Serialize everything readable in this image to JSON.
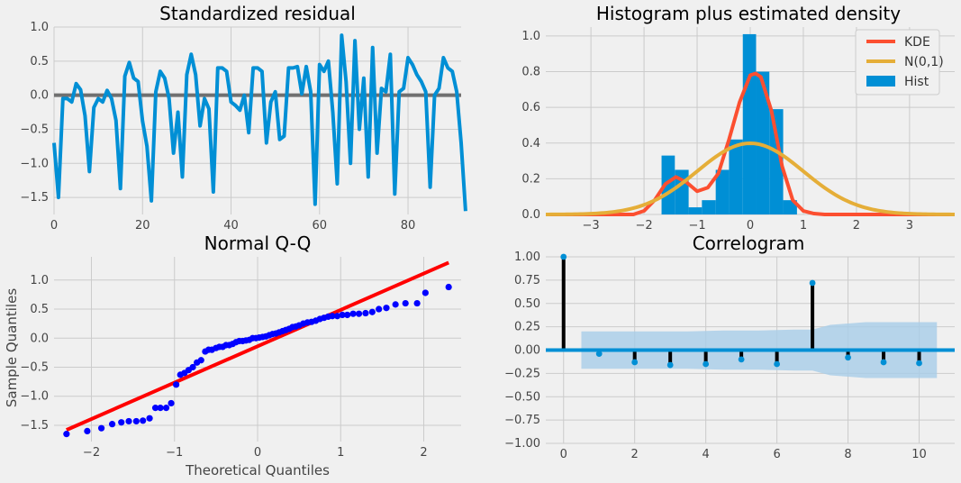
{
  "chart_data": [
    {
      "id": "residual",
      "type": "line",
      "title": "Standardized residual",
      "xlim": [
        0,
        92
      ],
      "ylim": [
        -1.75,
        1.0
      ],
      "xticks": [
        0,
        20,
        40,
        60,
        80
      ],
      "yticks": [
        1.0,
        0.5,
        0.0,
        -0.5,
        -1.0,
        -1.5
      ],
      "ytick_labels": [
        "1.0",
        "0.5",
        "0.0",
        "−0.5",
        "−1.0",
        "−1.5"
      ],
      "grid": true,
      "zero_line_color": "#707070",
      "series_color": "#008fd5",
      "values": [
        -0.7,
        -1.5,
        -0.05,
        -0.05,
        -0.1,
        0.17,
        0.08,
        -0.3,
        -1.12,
        -0.18,
        -0.05,
        -0.1,
        0.07,
        -0.05,
        -0.37,
        -1.37,
        0.28,
        0.48,
        0.25,
        0.2,
        -0.38,
        -0.75,
        -1.55,
        0.05,
        0.35,
        0.25,
        -0.05,
        -0.85,
        -0.25,
        -1.2,
        0.3,
        0.6,
        0.3,
        -0.45,
        -0.05,
        -0.2,
        -1.42,
        0.4,
        0.4,
        0.35,
        -0.1,
        -0.15,
        -0.22,
        0.0,
        -0.55,
        0.4,
        0.4,
        0.35,
        -0.7,
        -0.1,
        0.05,
        -0.65,
        -0.6,
        0.4,
        0.4,
        0.42,
        0.02,
        0.42,
        0.05,
        -1.6,
        0.45,
        0.35,
        0.5,
        -0.25,
        -1.3,
        0.88,
        0.2,
        -1.0,
        0.8,
        -0.5,
        0.25,
        -1.2,
        0.7,
        -0.85,
        0.1,
        0.05,
        0.6,
        -1.45,
        0.05,
        0.1,
        0.55,
        0.45,
        0.3,
        0.2,
        0.05,
        -1.35,
        0.0,
        0.1,
        0.55,
        0.4,
        0.35,
        0.05,
        -0.7,
        -1.7
      ]
    },
    {
      "id": "histogram",
      "type": "bar",
      "title": "Histogram plus estimated density",
      "xlim": [
        -3.85,
        3.85
      ],
      "ylim": [
        0,
        1.05
      ],
      "xticks": [
        -3,
        -2,
        -1,
        0,
        1,
        2,
        3
      ],
      "xtick_labels": [
        "−3",
        "−2",
        "−1",
        "0",
        "1",
        "2",
        "3"
      ],
      "yticks": [
        0.0,
        0.2,
        0.4,
        0.6,
        0.8,
        1.0
      ],
      "grid": true,
      "legend_position": "top-right",
      "hist": {
        "name": "Hist",
        "color": "#008fd5",
        "bin_edges": [
          -1.67,
          -1.42,
          -1.16,
          -0.91,
          -0.65,
          -0.4,
          -0.14,
          0.11,
          0.36,
          0.62,
          0.88
        ],
        "values": [
          0.33,
          0.25,
          0.04,
          0.08,
          0.25,
          0.42,
          1.01,
          0.8,
          0.59,
          0.08
        ]
      },
      "kde": {
        "name": "KDE",
        "color": "#fc4f30",
        "x": [
          -2.2,
          -2.0,
          -1.8,
          -1.6,
          -1.4,
          -1.2,
          -1.0,
          -0.8,
          -0.6,
          -0.4,
          -0.2,
          0.0,
          0.1,
          0.2,
          0.4,
          0.6,
          0.8,
          1.0,
          1.2,
          1.4
        ],
        "y": [
          0.0,
          0.02,
          0.08,
          0.17,
          0.21,
          0.18,
          0.13,
          0.15,
          0.23,
          0.42,
          0.63,
          0.78,
          0.79,
          0.77,
          0.58,
          0.27,
          0.08,
          0.02,
          0.005,
          0.0
        ]
      },
      "normal": {
        "name": "N(0,1)",
        "color": "#e5ae38",
        "mean": 0,
        "sd": 1
      }
    },
    {
      "id": "qq",
      "type": "scatter",
      "title": "Normal Q-Q",
      "xlabel": "Theoretical Quantiles",
      "ylabel": "Sample Quantiles",
      "xlim": [
        -2.45,
        2.45
      ],
      "ylim": [
        -1.78,
        1.4
      ],
      "xticks": [
        -2,
        -1,
        0,
        1,
        2
      ],
      "xtick_labels": [
        "−2",
        "−1",
        "0",
        "1",
        "2"
      ],
      "yticks": [
        1.0,
        0.5,
        0.0,
        -0.5,
        -1.0,
        -1.5
      ],
      "ytick_labels": [
        "1.0",
        "0.5",
        "0.0",
        "−0.5",
        "−1.0",
        "−1.5"
      ],
      "grid": true,
      "point_color": "#0000ff",
      "line_color": "#ff0000",
      "line": [
        [
          -2.3,
          -1.58
        ],
        [
          2.3,
          1.3
        ]
      ],
      "points": [
        [
          -2.3,
          -1.65
        ],
        [
          -2.05,
          -1.6
        ],
        [
          -1.88,
          -1.55
        ],
        [
          -1.75,
          -1.48
        ],
        [
          -1.64,
          -1.45
        ],
        [
          -1.55,
          -1.43
        ],
        [
          -1.46,
          -1.43
        ],
        [
          -1.38,
          -1.42
        ],
        [
          -1.3,
          -1.38
        ],
        [
          -1.23,
          -1.2
        ],
        [
          -1.17,
          -1.2
        ],
        [
          -1.1,
          -1.2
        ],
        [
          -1.04,
          -1.12
        ],
        [
          -0.98,
          -0.8
        ],
        [
          -0.93,
          -0.63
        ],
        [
          -0.88,
          -0.6
        ],
        [
          -0.83,
          -0.55
        ],
        [
          -0.78,
          -0.5
        ],
        [
          -0.73,
          -0.42
        ],
        [
          -0.68,
          -0.38
        ],
        [
          -0.63,
          -0.23
        ],
        [
          -0.59,
          -0.2
        ],
        [
          -0.55,
          -0.2
        ],
        [
          -0.5,
          -0.17
        ],
        [
          -0.46,
          -0.15
        ],
        [
          -0.42,
          -0.15
        ],
        [
          -0.38,
          -0.12
        ],
        [
          -0.34,
          -0.12
        ],
        [
          -0.3,
          -0.1
        ],
        [
          -0.26,
          -0.07
        ],
        [
          -0.22,
          -0.05
        ],
        [
          -0.18,
          -0.05
        ],
        [
          -0.14,
          -0.04
        ],
        [
          -0.1,
          -0.03
        ],
        [
          -0.06,
          0.0
        ],
        [
          -0.02,
          0.0
        ],
        [
          0.02,
          0.01
        ],
        [
          0.06,
          0.02
        ],
        [
          0.1,
          0.03
        ],
        [
          0.14,
          0.05
        ],
        [
          0.18,
          0.07
        ],
        [
          0.22,
          0.08
        ],
        [
          0.26,
          0.1
        ],
        [
          0.3,
          0.12
        ],
        [
          0.34,
          0.14
        ],
        [
          0.38,
          0.16
        ],
        [
          0.42,
          0.19
        ],
        [
          0.46,
          0.2
        ],
        [
          0.5,
          0.22
        ],
        [
          0.55,
          0.25
        ],
        [
          0.6,
          0.27
        ],
        [
          0.65,
          0.28
        ],
        [
          0.7,
          0.3
        ],
        [
          0.75,
          0.33
        ],
        [
          0.8,
          0.35
        ],
        [
          0.85,
          0.37
        ],
        [
          0.9,
          0.38
        ],
        [
          0.96,
          0.38
        ],
        [
          1.02,
          0.4
        ],
        [
          1.08,
          0.4
        ],
        [
          1.15,
          0.42
        ],
        [
          1.22,
          0.42
        ],
        [
          1.3,
          0.43
        ],
        [
          1.38,
          0.45
        ],
        [
          1.46,
          0.5
        ],
        [
          1.55,
          0.52
        ],
        [
          1.66,
          0.58
        ],
        [
          1.78,
          0.6
        ],
        [
          1.92,
          0.6
        ],
        [
          2.02,
          0.78
        ],
        [
          2.3,
          0.88
        ]
      ]
    },
    {
      "id": "correlogram",
      "type": "bar",
      "title": "Correlogram",
      "xlim": [
        -0.5,
        11.0
      ],
      "ylim": [
        -1.0,
        1.0
      ],
      "xticks": [
        0,
        2,
        4,
        6,
        8,
        10
      ],
      "yticks": [
        1.0,
        0.75,
        0.5,
        0.25,
        0.0,
        -0.25,
        -0.5,
        -0.75,
        -1.0
      ],
      "ytick_labels": [
        "1.00",
        "0.75",
        "0.50",
        "0.25",
        "0.00",
        "−0.25",
        "−0.50",
        "−0.75",
        "−1.00"
      ],
      "grid": true,
      "stem_color": "#000000",
      "marker_color": "#008fd5",
      "band_color": "#a8cde8",
      "lags": [
        0,
        1,
        2,
        3,
        4,
        5,
        6,
        7,
        8,
        9,
        10
      ],
      "values": [
        1.0,
        -0.04,
        -0.13,
        -0.16,
        -0.15,
        -0.1,
        -0.15,
        0.72,
        -0.08,
        -0.13,
        -0.14
      ],
      "conf_band": {
        "x": [
          0.5,
          1.5,
          2.5,
          3.5,
          4.5,
          5.5,
          6.5,
          7.0,
          7.5,
          8.5,
          9.5,
          10.5
        ],
        "upper": [
          0.2,
          0.2,
          0.2,
          0.2,
          0.21,
          0.21,
          0.22,
          0.22,
          0.27,
          0.3,
          0.3,
          0.3
        ]
      }
    }
  ]
}
